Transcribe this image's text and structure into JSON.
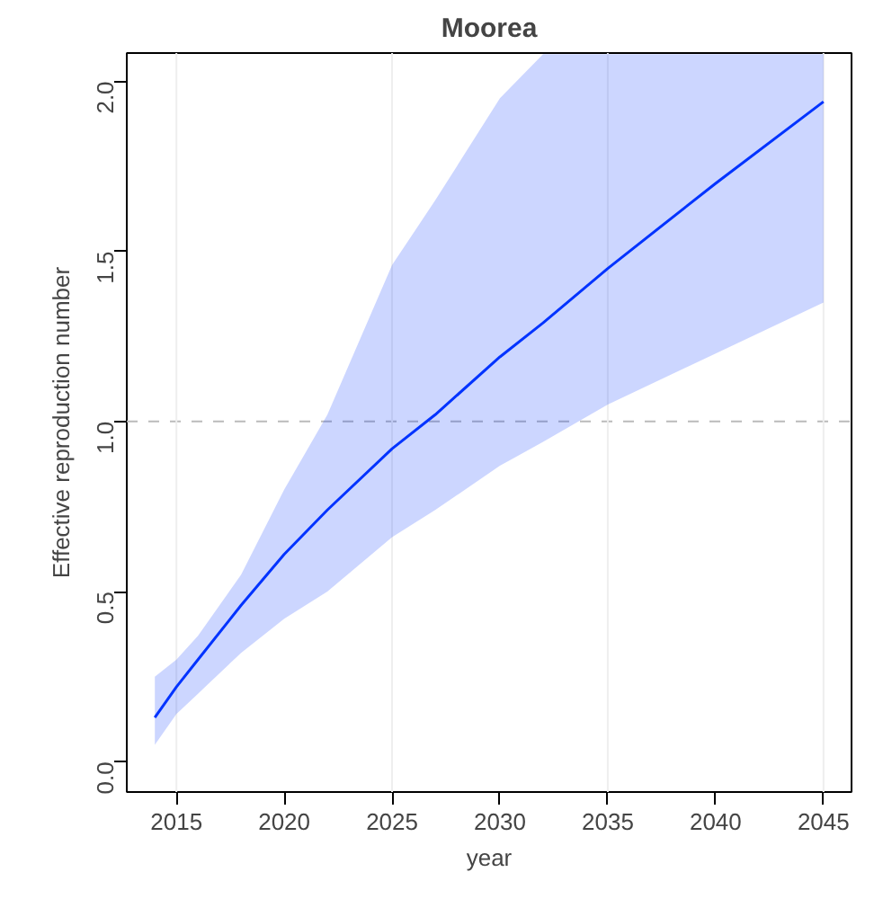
{
  "chart_data": {
    "type": "line",
    "title": "Moorea",
    "xlabel": "year",
    "ylabel": "Effective reproduction number",
    "x": [
      2014,
      2015,
      2016,
      2018,
      2020,
      2022,
      2025,
      2027,
      2030,
      2032,
      2035,
      2040,
      2045
    ],
    "series": [
      {
        "color": "#0033ff",
        "values": [
          0.13,
          0.22,
          0.3,
          0.46,
          0.61,
          0.74,
          0.92,
          1.02,
          1.19,
          1.29,
          1.45,
          1.7,
          1.94
        ],
        "lower": [
          0.05,
          0.14,
          0.2,
          0.32,
          0.42,
          0.5,
          0.66,
          0.74,
          0.87,
          0.94,
          1.05,
          1.2,
          1.35
        ],
        "upper": [
          0.25,
          0.3,
          0.37,
          0.55,
          0.8,
          1.02,
          1.46,
          1.65,
          1.95,
          2.08,
          2.08,
          2.08,
          2.08
        ]
      }
    ],
    "xlim": [
      2012.7,
      2046.3
    ],
    "ylim": [
      -0.089,
      2.083
    ],
    "xticks": [
      2015,
      2020,
      2025,
      2030,
      2035,
      2040,
      2045
    ],
    "yticks": [
      {
        "value": 0,
        "label": "0.0"
      },
      {
        "value": 0.5,
        "label": "0.5"
      },
      {
        "value": 1,
        "label": "1.0"
      },
      {
        "value": 1.5,
        "label": "1.5"
      },
      {
        "value": 2,
        "label": "2.0"
      }
    ],
    "ref_lines": [
      {
        "axis": "y",
        "value": 1,
        "color": "#bbbbbb",
        "line_style": "dashed"
      },
      {
        "axis": "x",
        "value": 2015,
        "color": "#eeeeee"
      },
      {
        "axis": "x",
        "value": 2025,
        "color": "#eeeeee"
      },
      {
        "axis": "x",
        "value": 2035,
        "color": "#eeeeee"
      },
      {
        "axis": "x",
        "value": 2045,
        "color": "#eeeeee"
      }
    ],
    "grid": false,
    "marker": "none",
    "line_style": "solid"
  }
}
